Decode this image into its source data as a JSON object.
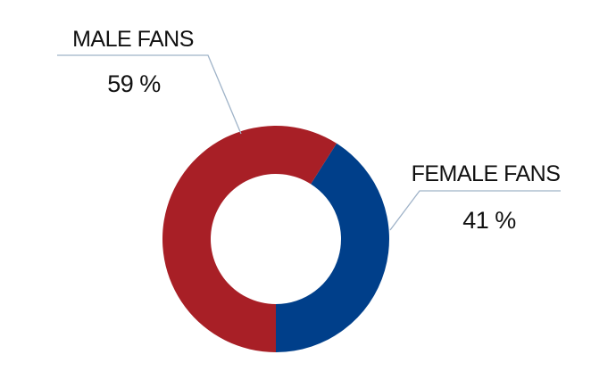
{
  "chart_data": {
    "type": "pie",
    "donut": true,
    "slices": [
      {
        "label": "MALE FANS",
        "value": 59,
        "display": "59 %",
        "color": "#a81f26"
      },
      {
        "label": "FEMALE FANS",
        "value": 41,
        "display": "41 %",
        "color": "#003f8a"
      }
    ],
    "legend": "none",
    "labels": "outside-with-leader-lines"
  }
}
